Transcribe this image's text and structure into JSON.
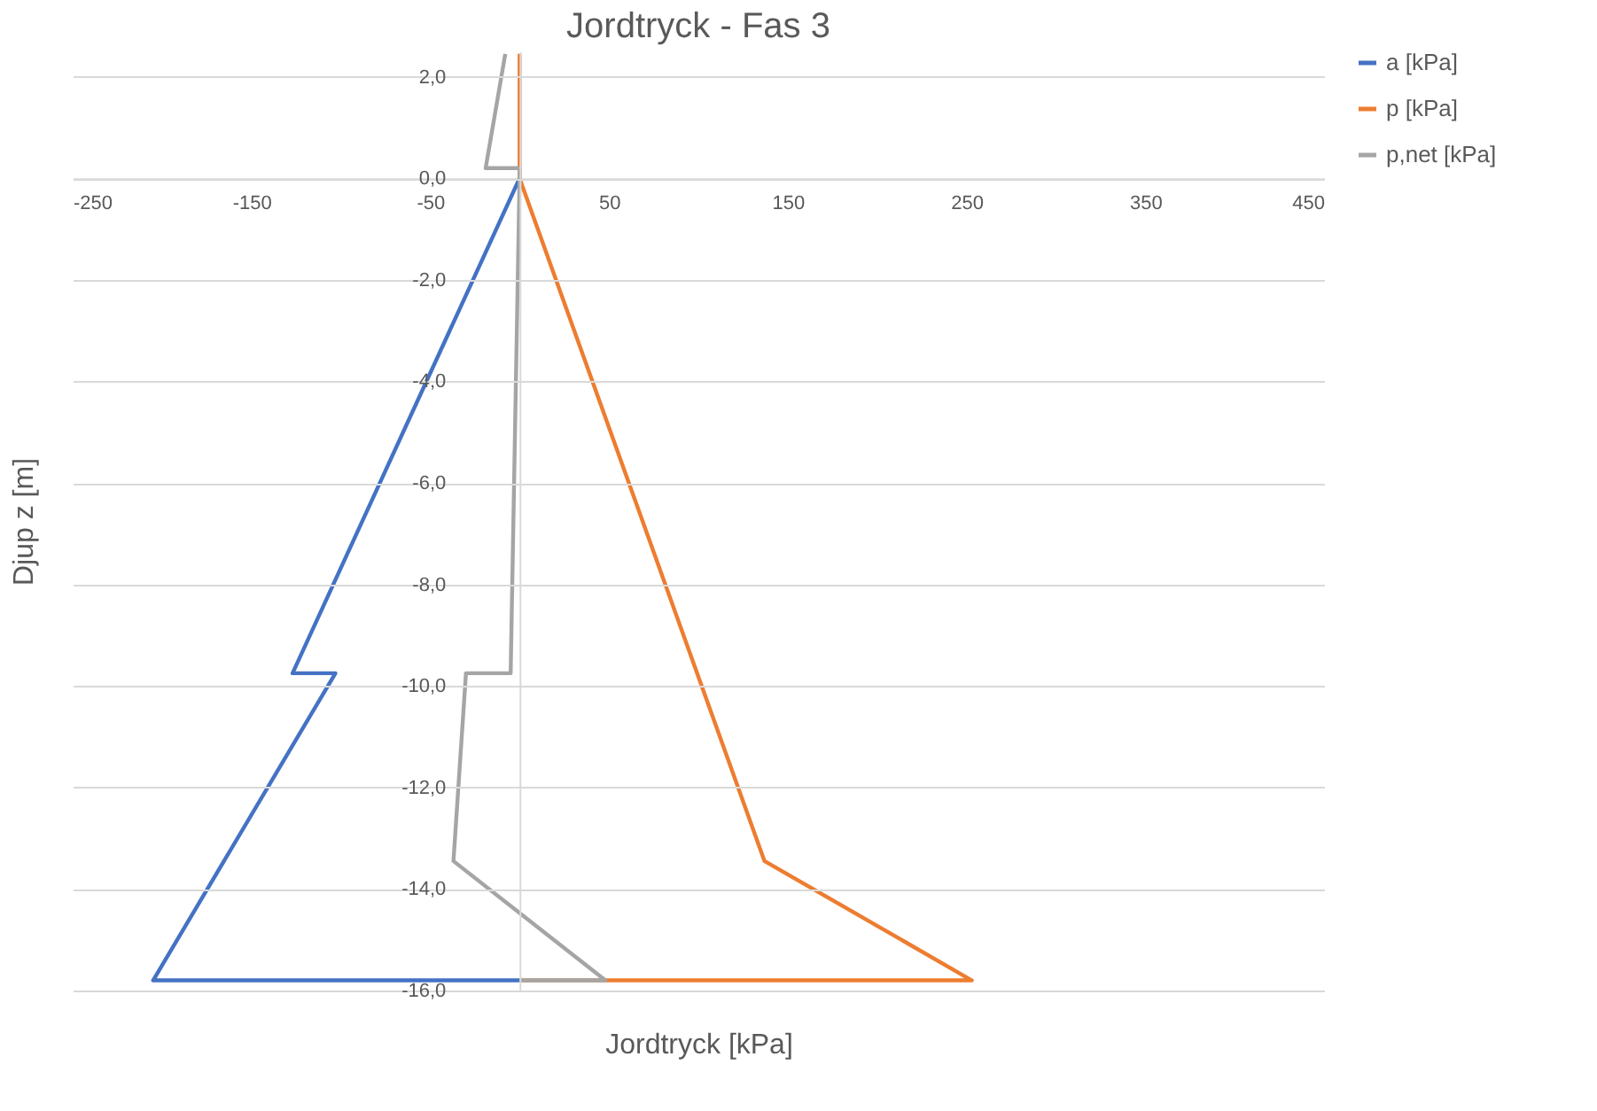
{
  "chart_data": {
    "type": "line",
    "title": "Jordtryck - Fas 3",
    "xlabel": "Jordtryck [kPa]",
    "ylabel": "Djup z [m]",
    "xlim": [
      -250,
      450
    ],
    "xticks": [
      -250,
      -150,
      -50,
      50,
      150,
      250,
      350,
      450
    ],
    "ylim": [
      -16,
      2.5
    ],
    "yticks": [
      {
        "value": -16,
        "label": "-16,0"
      },
      {
        "value": -14,
        "label": "-14,0"
      },
      {
        "value": -12,
        "label": "-12,0"
      },
      {
        "value": -10,
        "label": "-10,0"
      },
      {
        "value": -8,
        "label": "-8,0"
      },
      {
        "value": -6,
        "label": "-6,0"
      },
      {
        "value": -4,
        "label": "-4,0"
      },
      {
        "value": -2,
        "label": "-2,0"
      },
      {
        "value": 0,
        "label": "0,0"
      },
      {
        "value": 2,
        "label": "2,0"
      }
    ],
    "grid": "y",
    "legend": "right",
    "marker": "none",
    "line_style": "solid",
    "series": [
      {
        "name": "a [kPa]",
        "color": "#4472c4",
        "x": [
          0,
          -127,
          -103,
          -205,
          0
        ],
        "values": [
          0,
          -9.75,
          -9.75,
          -15.8,
          -15.8
        ]
      },
      {
        "name": "p [kPa]",
        "color": "#ed7d31",
        "x": [
          0,
          0,
          137,
          253,
          0
        ],
        "values": [
          2.45,
          0,
          -13.45,
          -15.8,
          -15.8
        ]
      },
      {
        "name": "p,net [kPa]",
        "color": "#a5a5a5",
        "x": [
          -8,
          -19,
          0,
          0,
          -5,
          -30,
          -37,
          48,
          0
        ],
        "values": [
          2.45,
          0.2,
          0.2,
          0,
          -9.75,
          -9.75,
          -13.45,
          -15.8,
          -15.8
        ]
      }
    ]
  }
}
